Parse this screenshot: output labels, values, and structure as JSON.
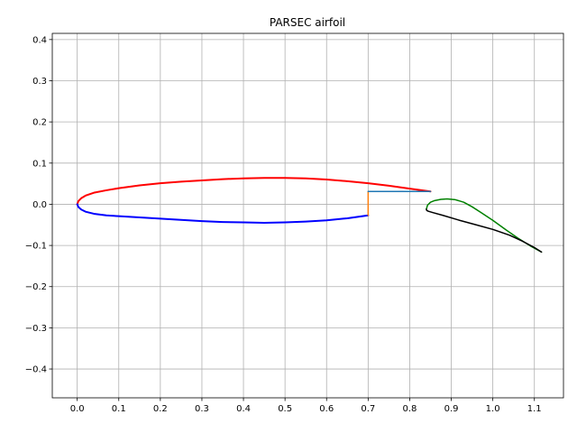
{
  "chart_data": {
    "type": "line",
    "title": "PARSEC airfoil",
    "xlabel": "",
    "ylabel": "",
    "xlim": [
      -0.06,
      1.17
    ],
    "ylim": [
      -0.47,
      0.415
    ],
    "xticks": [
      0.0,
      0.1,
      0.2,
      0.3,
      0.4,
      0.5,
      0.6,
      0.7,
      0.8,
      0.9,
      1.0,
      1.1
    ],
    "xtick_labels": [
      "0.0",
      "0.1",
      "0.2",
      "0.3",
      "0.4",
      "0.5",
      "0.6",
      "0.7",
      "0.8",
      "0.9",
      "1.0",
      "1.1"
    ],
    "yticks": [
      -0.4,
      -0.3,
      -0.2,
      -0.1,
      0.0,
      0.1,
      0.2,
      0.3,
      0.4
    ],
    "ytick_labels": [
      "−0.4",
      "−0.3",
      "−0.2",
      "−0.1",
      "0.0",
      "0.1",
      "0.2",
      "0.3",
      "0.4"
    ],
    "grid": true,
    "series": [
      {
        "color": "#ff0000",
        "linewidth": 2,
        "x": [
          0.0,
          0.003,
          0.01,
          0.02,
          0.04,
          0.07,
          0.1,
          0.15,
          0.2,
          0.25,
          0.3,
          0.35,
          0.4,
          0.45,
          0.5,
          0.55,
          0.6,
          0.65,
          0.7,
          0.75,
          0.8,
          0.85
        ],
        "y": [
          0.0,
          0.008,
          0.015,
          0.021,
          0.028,
          0.034,
          0.039,
          0.046,
          0.051,
          0.055,
          0.058,
          0.061,
          0.063,
          0.064,
          0.064,
          0.063,
          0.06,
          0.056,
          0.051,
          0.045,
          0.038,
          0.031
        ]
      },
      {
        "color": "#0000ff",
        "linewidth": 2,
        "x": [
          0.0,
          0.003,
          0.01,
          0.02,
          0.04,
          0.07,
          0.1,
          0.15,
          0.2,
          0.25,
          0.3,
          0.35,
          0.4,
          0.45,
          0.5,
          0.55,
          0.6,
          0.65,
          0.7
        ],
        "y": [
          0.0,
          -0.007,
          -0.013,
          -0.018,
          -0.023,
          -0.027,
          -0.029,
          -0.032,
          -0.035,
          -0.038,
          -0.041,
          -0.043,
          -0.044,
          -0.045,
          -0.044,
          -0.042,
          -0.039,
          -0.034,
          -0.027
        ]
      },
      {
        "color": "#ff7f0e",
        "linewidth": 1.5,
        "x": [
          0.7,
          0.7
        ],
        "y": [
          -0.027,
          0.031
        ]
      },
      {
        "color": "#1f77b4",
        "linewidth": 1.5,
        "x": [
          0.7,
          0.85
        ],
        "y": [
          0.031,
          0.031
        ]
      },
      {
        "color": "#008000",
        "linewidth": 1.5,
        "x": [
          0.84,
          0.843,
          0.85,
          0.86,
          0.875,
          0.89,
          0.91,
          0.93,
          0.95,
          0.97,
          1.0,
          1.03,
          1.06,
          1.09,
          1.117
        ],
        "y": [
          -0.012,
          -0.002,
          0.005,
          0.009,
          0.012,
          0.013,
          0.011,
          0.005,
          -0.006,
          -0.019,
          -0.039,
          -0.061,
          -0.082,
          -0.101,
          -0.116
        ]
      },
      {
        "color": "#000000",
        "linewidth": 1.5,
        "x": [
          0.84,
          0.841,
          0.845,
          0.855,
          0.88,
          0.92,
          0.96,
          1.0,
          1.04,
          1.07,
          1.1,
          1.117
        ],
        "y": [
          -0.012,
          -0.015,
          -0.017,
          -0.02,
          -0.027,
          -0.039,
          -0.05,
          -0.061,
          -0.075,
          -0.089,
          -0.105,
          -0.116
        ]
      }
    ]
  }
}
